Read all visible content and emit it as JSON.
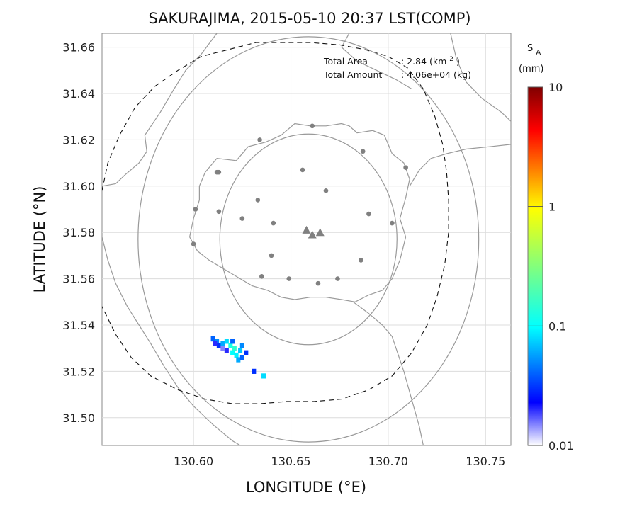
{
  "title": "SAKURAJIMA, 2015-05-10 20:37 LST(COMP)",
  "xlabel": "LONGITUDE (°E)",
  "ylabel": "LATITUDE (°N)",
  "info": {
    "area_label": "Total Area",
    "area_value": ": 2.84 (km",
    "area_sup": "2",
    "area_close": ")",
    "amount_label": "Total Amount",
    "amount_value": ": 4.06e+04 (kg)"
  },
  "colorbar": {
    "symbol": "S",
    "symbol_sub": "A",
    "unit": "(mm)",
    "scale": "log",
    "range": [
      0.01,
      10
    ],
    "ticks": [
      {
        "value": 10,
        "label": "10"
      },
      {
        "value": 1,
        "label": "1"
      },
      {
        "value": 0.1,
        "label": "0.1"
      },
      {
        "value": 0.01,
        "label": "0.01"
      }
    ],
    "colors": [
      "#ffffff",
      "#0000ff",
      "#00ffff",
      "#ffff00",
      "#ff0000",
      "#800000"
    ]
  },
  "map": {
    "xlim": [
      130.553,
      130.763
    ],
    "ylim": [
      31.488,
      31.666
    ],
    "grid": true,
    "x_ticks": [
      {
        "value": 130.6,
        "label": "130.60"
      },
      {
        "value": 130.65,
        "label": "130.65"
      },
      {
        "value": 130.7,
        "label": "130.70"
      },
      {
        "value": 130.75,
        "label": "130.75"
      }
    ],
    "y_ticks": [
      {
        "value": 31.5,
        "label": "31.50"
      },
      {
        "value": 31.52,
        "label": "31.52"
      },
      {
        "value": 31.54,
        "label": "31.54"
      },
      {
        "value": 31.56,
        "label": "31.56"
      },
      {
        "value": 31.58,
        "label": "31.58"
      },
      {
        "value": 31.6,
        "label": "31.60"
      },
      {
        "value": 31.62,
        "label": "31.62"
      },
      {
        "value": 31.64,
        "label": "31.64"
      },
      {
        "value": 31.66,
        "label": "31.66"
      }
    ],
    "radar_center": {
      "lon": 130.659,
      "lat": 31.577
    },
    "inner_circle_radius_deg": 0.0455,
    "outer_circle_radius_deg": 0.0875,
    "vents": [
      {
        "lon": 130.658,
        "lat": 31.581
      },
      {
        "lon": 130.661,
        "lat": 31.579
      },
      {
        "lon": 130.665,
        "lat": 31.58
      }
    ],
    "stations": [
      {
        "lon": 130.661,
        "lat": 31.626
      },
      {
        "lon": 130.634,
        "lat": 31.62
      },
      {
        "lon": 130.687,
        "lat": 31.615
      },
      {
        "lon": 130.656,
        "lat": 31.607
      },
      {
        "lon": 130.613,
        "lat": 31.606
      },
      {
        "lon": 130.612,
        "lat": 31.606
      },
      {
        "lon": 130.709,
        "lat": 31.608
      },
      {
        "lon": 130.668,
        "lat": 31.598
      },
      {
        "lon": 130.633,
        "lat": 31.594
      },
      {
        "lon": 130.601,
        "lat": 31.59
      },
      {
        "lon": 130.613,
        "lat": 31.589
      },
      {
        "lon": 130.69,
        "lat": 31.588
      },
      {
        "lon": 130.625,
        "lat": 31.586
      },
      {
        "lon": 130.641,
        "lat": 31.584
      },
      {
        "lon": 130.702,
        "lat": 31.584
      },
      {
        "lon": 130.6,
        "lat": 31.575
      },
      {
        "lon": 130.64,
        "lat": 31.57
      },
      {
        "lon": 130.686,
        "lat": 31.568
      },
      {
        "lon": 130.635,
        "lat": 31.561
      },
      {
        "lon": 130.649,
        "lat": 31.56
      },
      {
        "lon": 130.674,
        "lat": 31.56
      },
      {
        "lon": 130.664,
        "lat": 31.558
      }
    ],
    "deposit_cells": [
      {
        "lon": 130.61,
        "lat": 31.534,
        "value": 0.04
      },
      {
        "lon": 130.612,
        "lat": 31.533,
        "value": 0.05
      },
      {
        "lon": 130.613,
        "lat": 31.531,
        "value": 0.03
      },
      {
        "lon": 130.615,
        "lat": 31.532,
        "value": 0.06
      },
      {
        "lon": 130.617,
        "lat": 31.533,
        "value": 0.08
      },
      {
        "lon": 130.619,
        "lat": 31.531,
        "value": 0.12
      },
      {
        "lon": 130.621,
        "lat": 31.53,
        "value": 0.15
      },
      {
        "lon": 130.62,
        "lat": 31.528,
        "value": 0.1
      },
      {
        "lon": 130.622,
        "lat": 31.527,
        "value": 0.09
      },
      {
        "lon": 130.624,
        "lat": 31.529,
        "value": 0.07
      },
      {
        "lon": 130.625,
        "lat": 31.531,
        "value": 0.05
      },
      {
        "lon": 130.617,
        "lat": 31.529,
        "value": 0.02
      },
      {
        "lon": 130.615,
        "lat": 31.53,
        "value": 0.015
      },
      {
        "lon": 130.623,
        "lat": 31.525,
        "value": 0.06
      },
      {
        "lon": 130.625,
        "lat": 31.526,
        "value": 0.04
      },
      {
        "lon": 130.627,
        "lat": 31.528,
        "value": 0.03
      },
      {
        "lon": 130.62,
        "lat": 31.533,
        "value": 0.04
      },
      {
        "lon": 130.611,
        "lat": 31.532,
        "value": 0.02
      },
      {
        "lon": 130.631,
        "lat": 31.52,
        "value": 0.03
      },
      {
        "lon": 130.636,
        "lat": 31.518,
        "value": 0.08
      }
    ],
    "island_outline": [
      [
        130.606,
        31.606
      ],
      [
        130.612,
        31.612
      ],
      [
        130.622,
        31.611
      ],
      [
        130.628,
        31.617
      ],
      [
        130.637,
        31.619
      ],
      [
        130.645,
        31.622
      ],
      [
        130.652,
        31.627
      ],
      [
        130.66,
        31.626
      ],
      [
        130.668,
        31.626
      ],
      [
        130.676,
        31.627
      ],
      [
        130.68,
        31.626
      ],
      [
        130.684,
        31.623
      ],
      [
        130.692,
        31.624
      ],
      [
        130.698,
        31.622
      ],
      [
        130.702,
        31.614
      ],
      [
        130.708,
        31.61
      ],
      [
        130.711,
        31.603
      ],
      [
        130.709,
        31.595
      ],
      [
        130.706,
        31.586
      ],
      [
        130.709,
        31.578
      ],
      [
        130.706,
        31.568
      ],
      [
        130.702,
        31.56
      ],
      [
        130.697,
        31.555
      ],
      [
        130.69,
        31.553
      ],
      [
        130.683,
        31.55
      ],
      [
        130.676,
        31.551
      ],
      [
        130.668,
        31.552
      ],
      [
        130.66,
        31.552
      ],
      [
        130.652,
        31.551
      ],
      [
        130.645,
        31.552
      ],
      [
        130.638,
        31.555
      ],
      [
        130.63,
        31.557
      ],
      [
        130.624,
        31.56
      ],
      [
        130.616,
        31.564
      ],
      [
        130.608,
        31.568
      ],
      [
        130.602,
        31.572
      ],
      [
        130.598,
        31.578
      ],
      [
        130.6,
        31.586
      ],
      [
        130.603,
        31.594
      ],
      [
        130.603,
        31.6
      ],
      [
        130.606,
        31.606
      ]
    ],
    "shore_lines": [
      [
        [
          130.553,
          31.6
        ],
        [
          130.56,
          31.601
        ],
        [
          130.565,
          31.605
        ],
        [
          130.572,
          31.61
        ],
        [
          130.576,
          31.615
        ],
        [
          130.575,
          31.622
        ],
        [
          130.583,
          31.632
        ],
        [
          130.59,
          31.642
        ],
        [
          130.596,
          31.65
        ],
        [
          130.604,
          31.657
        ],
        [
          130.612,
          31.666
        ]
      ],
      [
        [
          130.553,
          31.578
        ],
        [
          130.556,
          31.568
        ],
        [
          130.56,
          31.558
        ],
        [
          130.566,
          31.548
        ],
        [
          130.572,
          31.54
        ],
        [
          130.578,
          31.532
        ],
        [
          130.585,
          31.522
        ],
        [
          130.592,
          31.513
        ],
        [
          130.6,
          31.505
        ],
        [
          130.61,
          31.497
        ],
        [
          130.62,
          31.49
        ],
        [
          130.624,
          31.488
        ]
      ],
      [
        [
          130.682,
          31.55
        ],
        [
          130.69,
          31.545
        ],
        [
          130.697,
          31.54
        ],
        [
          130.702,
          31.535
        ],
        [
          130.708,
          31.52
        ],
        [
          130.712,
          31.508
        ],
        [
          130.716,
          31.496
        ],
        [
          130.718,
          31.488
        ]
      ],
      [
        [
          130.711,
          31.6
        ],
        [
          130.716,
          31.607
        ],
        [
          130.722,
          31.612
        ],
        [
          130.73,
          31.614
        ],
        [
          130.74,
          31.616
        ],
        [
          130.752,
          31.617
        ],
        [
          130.763,
          31.618
        ]
      ],
      [
        [
          130.732,
          31.666
        ],
        [
          130.735,
          31.655
        ],
        [
          130.74,
          31.645
        ],
        [
          130.748,
          31.638
        ],
        [
          130.758,
          31.632
        ],
        [
          130.763,
          31.628
        ]
      ],
      [
        [
          130.68,
          31.666
        ],
        [
          130.676,
          31.66
        ],
        [
          130.684,
          31.654
        ],
        [
          130.694,
          31.65
        ],
        [
          130.704,
          31.646
        ],
        [
          130.712,
          31.642
        ]
      ]
    ],
    "coverage_boundary": [
      [
        130.553,
        31.598
      ],
      [
        130.556,
        31.61
      ],
      [
        130.562,
        31.622
      ],
      [
        130.57,
        31.634
      ],
      [
        130.58,
        31.643
      ],
      [
        130.592,
        31.65
      ],
      [
        130.604,
        31.656
      ],
      [
        130.618,
        31.659
      ],
      [
        130.632,
        31.662
      ],
      [
        130.645,
        31.662
      ],
      [
        130.66,
        31.662
      ],
      [
        130.675,
        31.661
      ],
      [
        130.688,
        31.659
      ],
      [
        130.7,
        31.656
      ],
      [
        130.71,
        31.651
      ],
      [
        130.718,
        31.642
      ],
      [
        130.724,
        31.63
      ],
      [
        130.728,
        31.618
      ],
      [
        130.73,
        31.606
      ],
      [
        130.731,
        31.594
      ],
      [
        130.731,
        31.58
      ],
      [
        130.729,
        31.566
      ],
      [
        130.725,
        31.552
      ],
      [
        130.72,
        31.54
      ],
      [
        130.712,
        31.528
      ],
      [
        130.702,
        31.518
      ],
      [
        130.69,
        31.512
      ],
      [
        130.676,
        31.508
      ],
      [
        130.662,
        31.507
      ],
      [
        130.648,
        31.507
      ],
      [
        130.634,
        31.506
      ],
      [
        130.62,
        31.506
      ],
      [
        130.606,
        31.508
      ],
      [
        130.592,
        31.512
      ],
      [
        130.578,
        31.518
      ],
      [
        130.568,
        31.526
      ],
      [
        130.56,
        31.536
      ],
      [
        130.553,
        31.548
      ]
    ]
  }
}
